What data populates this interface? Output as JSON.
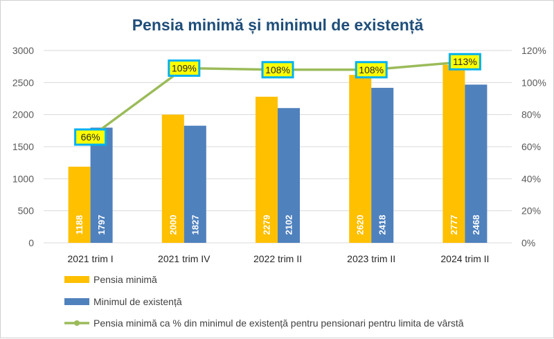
{
  "chart_data": {
    "type": "bar",
    "title": "Pensia minimă și minimul de existență",
    "categories": [
      "2021 trim I",
      "2021 trim IV",
      "2022 trim II",
      "2023 trim II",
      "2024 trim II"
    ],
    "series": [
      {
        "name": "Pensia minimă",
        "type": "bar",
        "axis": "left",
        "color": "#FFC000",
        "values": [
          1188,
          2000,
          2279,
          2620,
          2777
        ]
      },
      {
        "name": "Minimul de existență",
        "type": "bar",
        "axis": "left",
        "color": "#4F81BD",
        "values": [
          1797,
          1827,
          2102,
          2418,
          2468
        ]
      },
      {
        "name": "Pensia minimă ca % din minimul de existență pentru pensionari pentru limita de vârstă",
        "type": "line",
        "axis": "right",
        "color": "#9BBB59",
        "values": [
          66,
          109,
          108,
          108,
          113
        ],
        "labels": [
          "66%",
          "109%",
          "108%",
          "108%",
          "113%"
        ]
      }
    ],
    "ylim": [
      0,
      3000
    ],
    "yticks": [
      "0",
      "500",
      "1000",
      "1500",
      "2000",
      "2500",
      "3000"
    ],
    "y2lim": [
      0,
      120
    ],
    "y2ticks": [
      "0%",
      "20%",
      "40%",
      "60%",
      "80%",
      "100%",
      "120%"
    ],
    "grid": true,
    "legend_position": "bottom",
    "colors": {
      "title": "#1F4E79",
      "grid": "#D9D9D9",
      "axis_text": "#595959",
      "label_box_fill": "#FFFF00",
      "label_box_border": "#00B0F0"
    }
  }
}
